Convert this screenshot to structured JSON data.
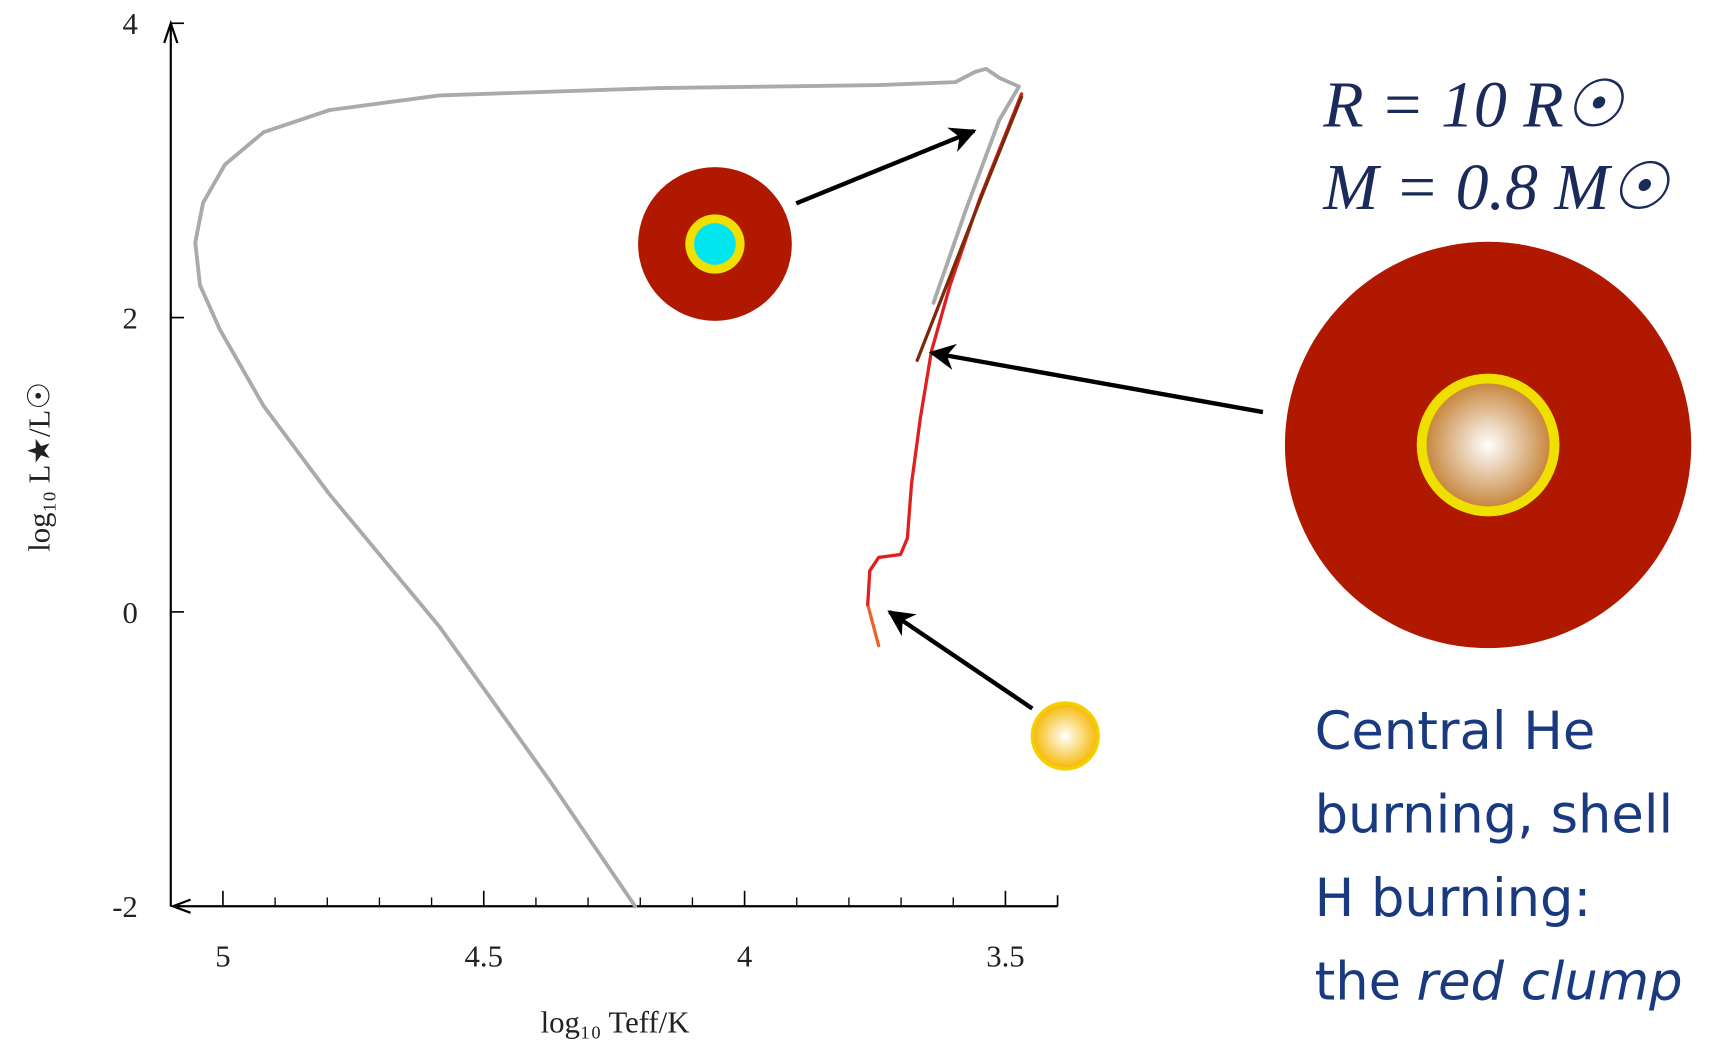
{
  "chart_data": {
    "type": "line",
    "xlabel": "log₁₀ Teff/K",
    "ylabel": "log₁₀ L★/L☉",
    "xlim": [
      5.1,
      3.4
    ],
    "ylim": [
      -2,
      4
    ],
    "xticks": [
      5,
      4.5,
      4,
      3.5
    ],
    "xminorticks": [
      4.9,
      4.8,
      4.7,
      4.6,
      4.4,
      4.3,
      4.2,
      4.1,
      3.9,
      3.8,
      3.7,
      3.6
    ],
    "yticks": [
      4,
      2,
      0,
      -2
    ],
    "series": [
      {
        "color": "#aaaaaa",
        "x": [
          3.638,
          3.575,
          3.512,
          3.474,
          3.512,
          3.537,
          3.558,
          3.596,
          3.743,
          4.164,
          4.585,
          4.796,
          4.922,
          4.996,
          5.038,
          5.053,
          5.044,
          5.006,
          4.922,
          4.796,
          4.585,
          4.375,
          4.21
        ],
        "values": [
          2.1,
          2.74,
          3.34,
          3.57,
          3.63,
          3.69,
          3.67,
          3.6,
          3.58,
          3.56,
          3.51,
          3.41,
          3.26,
          3.04,
          2.78,
          2.51,
          2.22,
          1.92,
          1.4,
          0.8,
          -0.1,
          -1.14,
          -2.0
        ]
      },
      {
        "color": "#e8642c",
        "x": [
          3.743,
          3.764
        ],
        "values": [
          -0.23,
          0.05
        ]
      },
      {
        "color": "#e02020",
        "x": [
          3.764,
          3.76,
          3.743,
          3.701,
          3.688,
          3.68,
          3.663,
          3.642,
          3.606,
          3.549,
          3.469
        ],
        "values": [
          0.05,
          0.28,
          0.37,
          0.39,
          0.5,
          0.87,
          1.32,
          1.77,
          2.22,
          2.81,
          3.52
        ]
      },
      {
        "color": "#7a2a0a",
        "x": [
          3.669,
          3.617,
          3.543,
          3.469
        ],
        "values": [
          1.71,
          2.18,
          2.85,
          3.5
        ]
      }
    ],
    "radius_label": "R = 10 R☉",
    "mass_label": "M = 0.8 M☉",
    "annotation": {
      "lines": [
        "Central He",
        "burning, shell",
        "H burning:",
        "the"
      ],
      "emphasis": "red clump"
    }
  }
}
